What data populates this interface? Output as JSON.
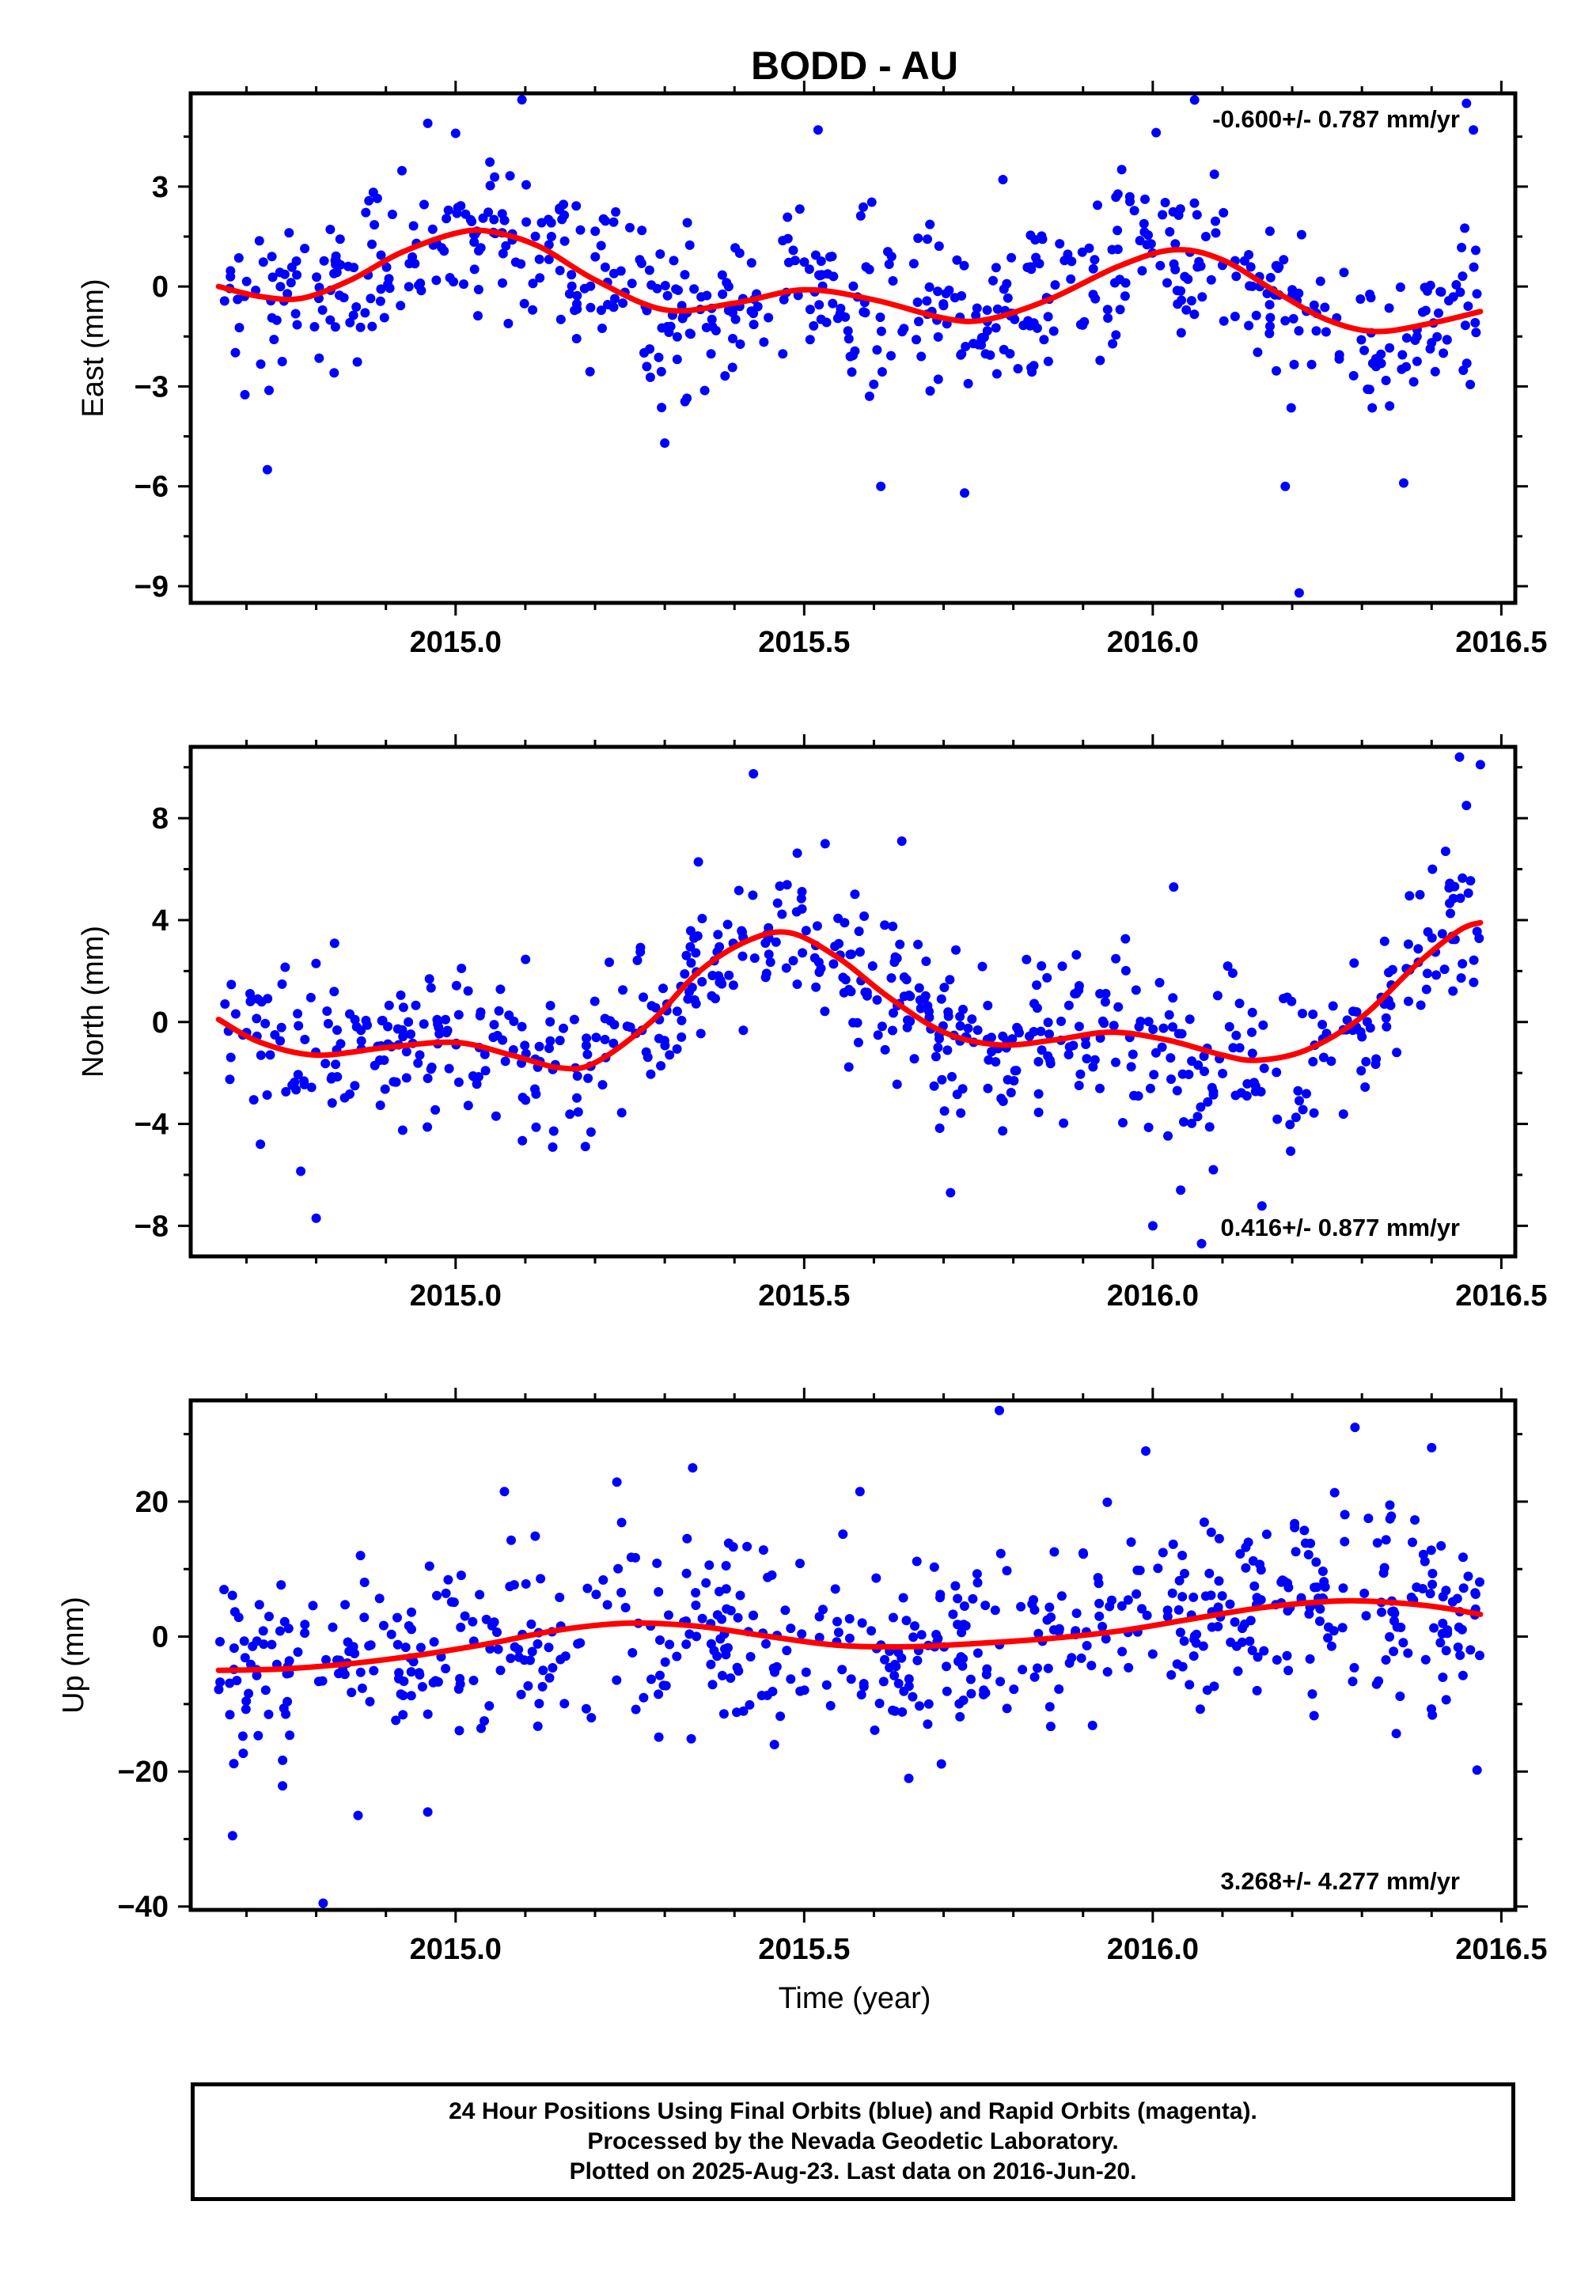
{
  "title": "BODD - AU",
  "colors": {
    "points": "#0000ff",
    "fit": "#ff0000",
    "frame": "#000000"
  },
  "chart_data": [
    {
      "type": "scatter",
      "ylabel": "East (mm)",
      "xlabel": "",
      "rate_label": "-0.600+/- 0.787 mm/yr",
      "rate_position": "top-right",
      "xlim": [
        2014.62,
        2016.52
      ],
      "ylim": [
        -9.5,
        5.8
      ],
      "xticks": [
        2015.0,
        2015.5,
        2016.0,
        2016.5
      ],
      "xtick_labels": [
        "2015.0",
        "2015.5",
        "2016.0",
        "2016.5"
      ],
      "yticks": [
        -9,
        -6,
        -3,
        0,
        3
      ],
      "ytick_labels": [
        "−9",
        "−6",
        "−3",
        "0",
        "3"
      ],
      "fit": {
        "x": [
          2014.66,
          2014.72,
          2014.78,
          2014.85,
          2014.92,
          2015.0,
          2015.05,
          2015.12,
          2015.2,
          2015.3,
          2015.4,
          2015.5,
          2015.6,
          2015.7,
          2015.76,
          2015.85,
          2015.95,
          2016.03,
          2016.1,
          2016.18,
          2016.25,
          2016.32,
          2016.4,
          2016.47
        ],
        "y": [
          0.0,
          -0.3,
          -0.35,
          0.2,
          1.0,
          1.6,
          1.65,
          1.2,
          0.2,
          -0.7,
          -0.5,
          -0.1,
          -0.4,
          -0.95,
          -1.0,
          -0.4,
          0.6,
          1.1,
          0.8,
          -0.2,
          -1.0,
          -1.35,
          -1.1,
          -0.75
        ]
      },
      "series": [
        {
          "name": "Final Orbits",
          "count": 620,
          "outliers": [
            [
              2014.73,
              -5.5
            ],
            [
              2015.3,
              -4.7
            ],
            [
              2015.52,
              4.7
            ],
            [
              2015.61,
              -6.0
            ],
            [
              2015.73,
              -6.2
            ],
            [
              2016.19,
              -6.0
            ],
            [
              2016.21,
              -9.2
            ],
            [
              2016.36,
              -5.9
            ],
            [
              2016.45,
              5.5
            ],
            [
              2016.06,
              5.6
            ],
            [
              2014.96,
              4.9
            ],
            [
              2015.0,
              4.6
            ],
            [
              2016.46,
              4.7
            ]
          ]
        }
      ]
    },
    {
      "type": "scatter",
      "ylabel": "North (mm)",
      "xlabel": "",
      "rate_label": "0.416+/- 0.877 mm/yr",
      "rate_position": "bottom-right",
      "xlim": [
        2014.62,
        2016.52
      ],
      "ylim": [
        -9.2,
        10.8
      ],
      "xticks": [
        2015.0,
        2015.5,
        2016.0,
        2016.5
      ],
      "xtick_labels": [
        "2015.0",
        "2015.5",
        "2016.0",
        "2016.5"
      ],
      "yticks": [
        -8,
        -4,
        0,
        4,
        8
      ],
      "ytick_labels": [
        "−8",
        "−4",
        "0",
        "4",
        "8"
      ],
      "fit": {
        "x": [
          2014.66,
          2014.72,
          2014.8,
          2014.9,
          2015.0,
          2015.08,
          2015.15,
          2015.2,
          2015.28,
          2015.35,
          2015.42,
          2015.48,
          2015.55,
          2015.62,
          2015.7,
          2015.78,
          2015.86,
          2015.94,
          2016.02,
          2016.1,
          2016.15,
          2016.22,
          2016.3,
          2016.38,
          2016.44,
          2016.47
        ],
        "y": [
          0.1,
          -0.8,
          -1.3,
          -1.0,
          -0.8,
          -1.3,
          -1.8,
          -1.6,
          0.0,
          2.0,
          3.2,
          3.5,
          2.5,
          1.0,
          -0.4,
          -0.9,
          -0.7,
          -0.4,
          -0.7,
          -1.3,
          -1.5,
          -1.1,
          0.2,
          2.3,
          3.6,
          3.9
        ]
      },
      "series": [
        {
          "name": "Final Orbits",
          "count": 620,
          "outliers": [
            [
              2014.8,
              -7.7
            ],
            [
              2014.72,
              -4.8
            ],
            [
              2015.71,
              -6.7
            ],
            [
              2015.64,
              7.1
            ],
            [
              2016.0,
              -8.0
            ],
            [
              2016.04,
              -6.6
            ],
            [
              2016.44,
              10.4
            ],
            [
              2016.47,
              10.1
            ],
            [
              2016.45,
              8.5
            ],
            [
              2016.42,
              6.7
            ],
            [
              2015.53,
              7.0
            ],
            [
              2016.03,
              5.3
            ],
            [
              2016.07,
              -8.7
            ]
          ]
        }
      ]
    },
    {
      "type": "scatter",
      "ylabel": "Up (mm)",
      "xlabel": "Time (year)",
      "rate_label": "3.268+/- 4.277 mm/yr",
      "rate_position": "bottom-right",
      "xlim": [
        2014.62,
        2016.52
      ],
      "ylim": [
        -40.5,
        35.0
      ],
      "xticks": [
        2015.0,
        2015.5,
        2016.0,
        2016.5
      ],
      "xtick_labels": [
        "2015.0",
        "2015.5",
        "2016.0",
        "2016.5"
      ],
      "yticks": [
        -40,
        -20,
        0,
        20
      ],
      "ytick_labels": [
        "−40",
        "−20",
        "0",
        "20"
      ],
      "fit": {
        "x": [
          2014.66,
          2014.75,
          2014.85,
          2014.95,
          2015.05,
          2015.15,
          2015.25,
          2015.35,
          2015.45,
          2015.55,
          2015.65,
          2015.75,
          2015.85,
          2015.95,
          2016.05,
          2016.15,
          2016.25,
          2016.32,
          2016.4,
          2016.47
        ],
        "y": [
          -5.0,
          -4.8,
          -4.0,
          -2.7,
          -1.0,
          1.0,
          2.0,
          1.5,
          0.0,
          -1.3,
          -1.5,
          -1.0,
          -0.3,
          0.8,
          2.5,
          4.2,
          5.2,
          5.2,
          4.5,
          3.3
        ]
      },
      "series": [
        {
          "name": "Final Orbits",
          "count": 620,
          "outliers": [
            [
              2014.81,
              -39.5
            ],
            [
              2014.68,
              -29.5
            ],
            [
              2014.86,
              -26.5
            ],
            [
              2014.96,
              -26.0
            ],
            [
              2015.78,
              33.5
            ],
            [
              2016.29,
              31.0
            ],
            [
              2016.4,
              28.0
            ],
            [
              2015.99,
              27.5
            ],
            [
              2015.34,
              25.0
            ],
            [
              2015.65,
              -21.0
            ],
            [
              2015.07,
              21.5
            ],
            [
              2015.58,
              21.5
            ]
          ]
        }
      ]
    }
  ],
  "footer": {
    "line1": "24 Hour Positions Using Final Orbits (blue) and Rapid Orbits (magenta).",
    "line2": "Processed by the Nevada Geodetic Laboratory.",
    "line3": "Plotted on 2025-Aug-23. Last data on 2016-Jun-20."
  }
}
